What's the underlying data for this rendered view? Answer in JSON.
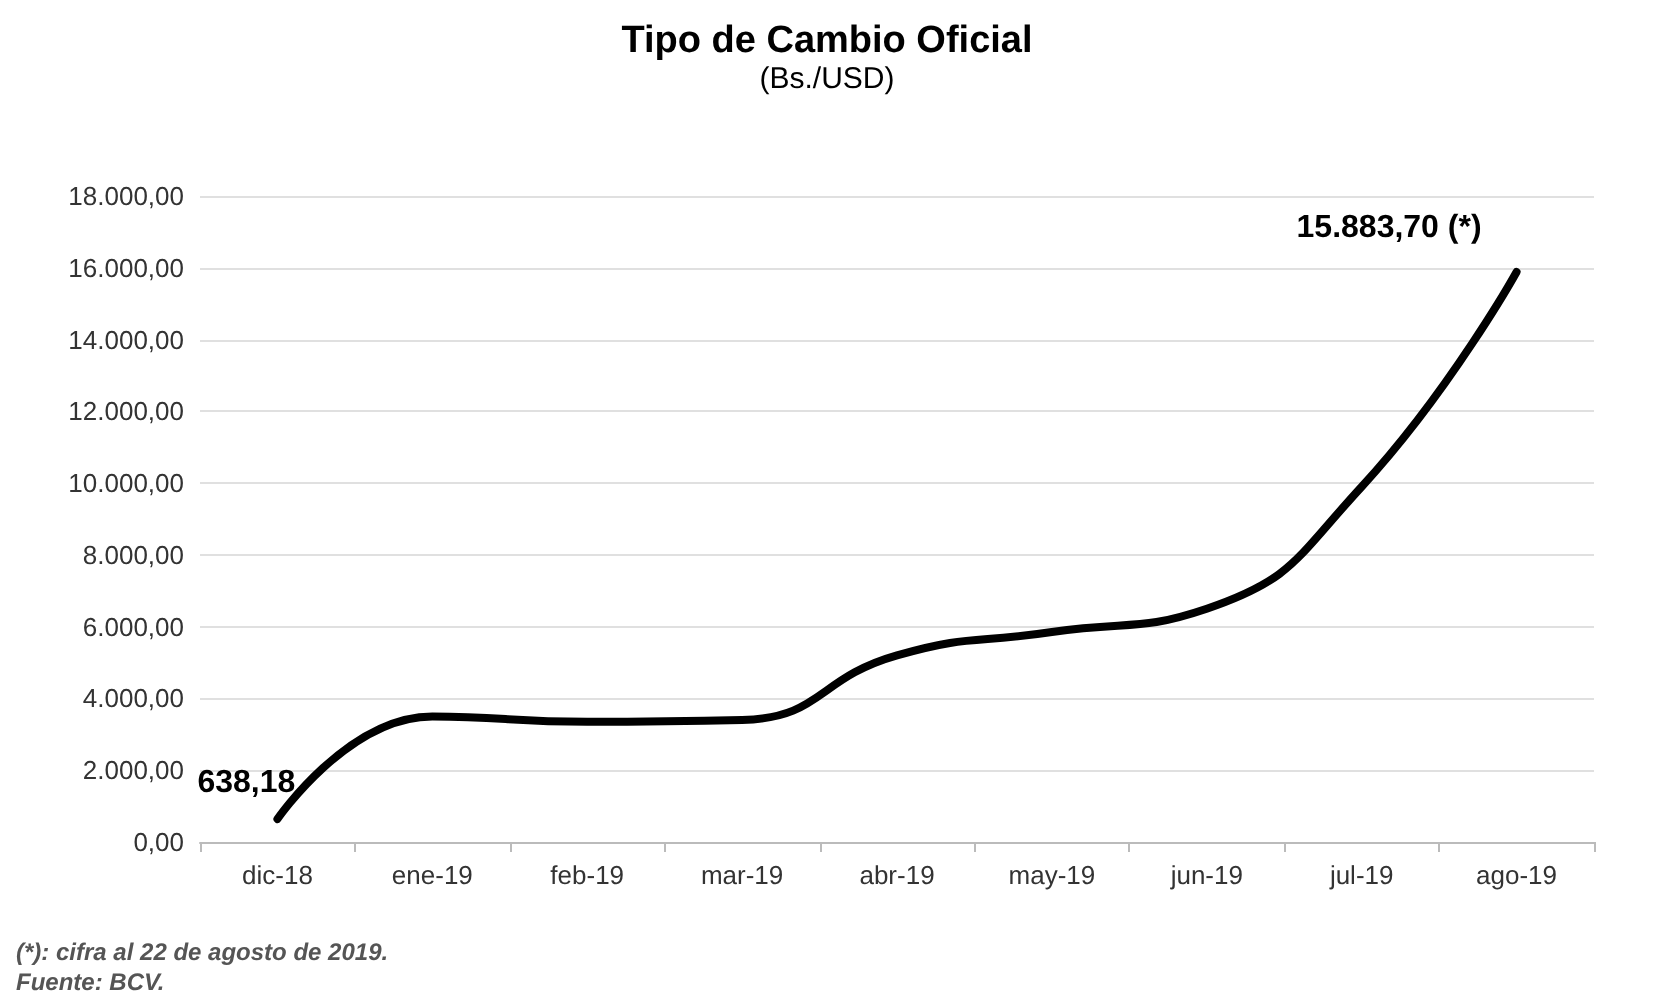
{
  "chart_data": {
    "type": "line",
    "title": "Tipo de Cambio Oficial",
    "subtitle": "(Bs./USD)",
    "categories": [
      "dic-18",
      "ene-19",
      "feb-19",
      "mar-19",
      "abr-19",
      "may-19",
      "jun-19",
      "jul-19",
      "ago-19"
    ],
    "series": [
      {
        "color": "#000000",
        "values": [
          638.18,
          3500,
          3350,
          3400,
          5200,
          5850,
          6500,
          9900,
          15883.7
        ],
        "value_labels": [
          "638,18",
          null,
          null,
          null,
          null,
          null,
          null,
          null,
          "15.883,70 (*)"
        ]
      }
    ],
    "ylim": [
      0,
      18000
    ],
    "yticks": [
      {
        "value": 0,
        "label": "0,00"
      },
      {
        "value": 2000,
        "label": "2.000,00"
      },
      {
        "value": 4000,
        "label": "4.000,00"
      },
      {
        "value": 6000,
        "label": "6.000,00"
      },
      {
        "value": 8000,
        "label": "8.000,00"
      },
      {
        "value": 10000,
        "label": "10.000,00"
      },
      {
        "value": 12000,
        "label": "12.000,00"
      },
      {
        "value": 14000,
        "label": "14.000,00"
      },
      {
        "value": 16000,
        "label": "16.000,00"
      },
      {
        "value": 18000,
        "label": "18.000,00"
      }
    ],
    "grid": "y",
    "marker": "none",
    "line_style": "solid",
    "annotations": [
      "(*): cifra al 22 de agosto de 2019.",
      "Fuente: BCV."
    ]
  }
}
